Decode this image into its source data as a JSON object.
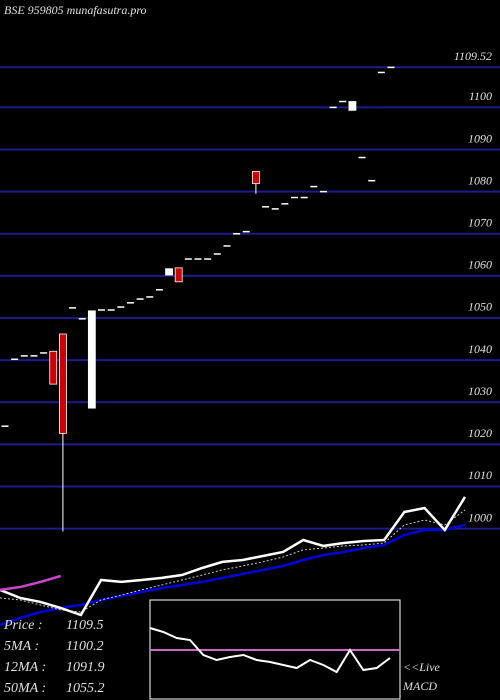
{
  "chart_data": {
    "type": "candlestick",
    "title": "BSE 959805 munafasutra.pro",
    "ylim": [
      959.3,
      1125.5
    ],
    "yticks": [
      1000,
      1010,
      1020,
      1030,
      1040,
      1050,
      1060,
      1070,
      1080,
      1090,
      1100,
      1109.52
    ],
    "grid": true,
    "grid_color": "#1c1c8c",
    "up_color": "#ffffff",
    "down_color": "#cc0000",
    "open": [
      1024.3,
      1040.2,
      1041,
      1041,
      1041.7,
      1042.1,
      1046.2,
      1052.4,
      1049.8,
      1028.6,
      1051.9,
      1051.9,
      1052.6,
      1053.6,
      1054.5,
      1055,
      1056.7,
      1060.2,
      1061.9,
      1064,
      1064,
      1064,
      1065.2,
      1067.1,
      1070,
      1070.5,
      1084.8,
      1076.4,
      1075.9,
      1077.1,
      1078.6,
      1078.6,
      1081.2,
      1080,
      1100,
      1101.4,
      1099.3,
      1088.1,
      1082.6,
      1108.3,
      1109.5
    ],
    "high": [
      1024.3,
      1040.2,
      1041,
      1041,
      1041.7,
      1042.1,
      1046.2,
      1052.4,
      1049.8,
      1051.7,
      1051.9,
      1051.9,
      1052.6,
      1053.6,
      1054.5,
      1055,
      1056.7,
      1061.7,
      1061.9,
      1064,
      1064,
      1064,
      1065.2,
      1067.1,
      1070,
      1070.5,
      1084.8,
      1076.4,
      1075.9,
      1077.1,
      1078.6,
      1078.6,
      1081.2,
      1080,
      1100,
      1101.4,
      1101.4,
      1088.1,
      1082.6,
      1108.3,
      1109.5
    ],
    "low": [
      1024.3,
      1040.2,
      1041,
      1041,
      1041.7,
      1034.3,
      999.3,
      1052.4,
      1049.8,
      1028.6,
      1051.9,
      1051.9,
      1052.6,
      1053.6,
      1054.5,
      1055,
      1056.7,
      1060.2,
      1058.6,
      1064,
      1064,
      1064,
      1065.2,
      1067.1,
      1070,
      1070.5,
      1079.5,
      1076.4,
      1075.9,
      1077.1,
      1078.6,
      1078.6,
      1081.2,
      1080,
      1100,
      1101.4,
      1099.3,
      1088.1,
      1082.6,
      1108.3,
      1109.5
    ],
    "close": [
      1024.3,
      1040.2,
      1041,
      1041,
      1041.7,
      1034.3,
      1022.6,
      1052.4,
      1049.8,
      1051.7,
      1051.9,
      1051.9,
      1052.6,
      1053.6,
      1054.5,
      1055,
      1056.7,
      1061.7,
      1058.6,
      1064,
      1064,
      1064,
      1065.2,
      1067.1,
      1070,
      1070.5,
      1081.9,
      1076.4,
      1075.9,
      1077.1,
      1078.6,
      1078.6,
      1081.2,
      1080,
      1100,
      1101.4,
      1101.4,
      1088.1,
      1082.6,
      1108.3,
      1109.5
    ],
    "ma_panel": {
      "ylim": [
        0,
        100
      ],
      "series": [
        {
          "color": "#0000dd",
          "values": [
            9.4,
            13.8,
            17.5,
            20,
            21.9,
            25,
            27.5,
            30,
            32.5,
            34.4,
            36.3,
            38.8,
            41.3,
            43.8,
            46.3,
            50,
            53.1,
            55,
            57.5,
            59.4,
            65.6,
            68.8,
            68.8,
            71.9
          ]
        },
        {
          "color": "#cccccc",
          "dashed": true,
          "values": [
            26.3,
            25,
            21.9,
            18.8,
            17.5,
            25,
            28.1,
            31.3,
            34.4,
            37.5,
            40.6,
            43.8,
            46.3,
            48.8,
            51.9,
            56.3,
            57.5,
            58.8,
            59.4,
            60.6,
            71.9,
            75,
            71.9,
            81.3
          ]
        },
        {
          "color": "#ffffff",
          "values": [
            31.3,
            26.3,
            23.8,
            20,
            15.6,
            37.5,
            36.3,
            37.5,
            38.8,
            40.6,
            45,
            48.8,
            50,
            52.5,
            55,
            62.5,
            58.8,
            60.6,
            61.9,
            62.5,
            80,
            82.5,
            68.8,
            89.4
          ]
        },
        {
          "color": "#cc44cc",
          "values": [
            31.3,
            33.1,
            36.3,
            40
          ]
        }
      ]
    },
    "legend": [
      {
        "label": "Price   :",
        "value": 1109.5
      },
      {
        "label": "5MA :",
        "value": 1100.2
      },
      {
        "label": "12MA :",
        "value": 1091.9
      },
      {
        "label": "50MA :",
        "value": 1055.2
      }
    ],
    "macd": {
      "label_top": "<<Live",
      "label_bottom": "MACD",
      "ylim": [
        0,
        100
      ],
      "signal": 50,
      "signal_color": "#cc66cc",
      "values": [
        72,
        68,
        62,
        60,
        45,
        40,
        43,
        45,
        40,
        38,
        35,
        32,
        40,
        35,
        28,
        50,
        30,
        32,
        42
      ]
    }
  }
}
